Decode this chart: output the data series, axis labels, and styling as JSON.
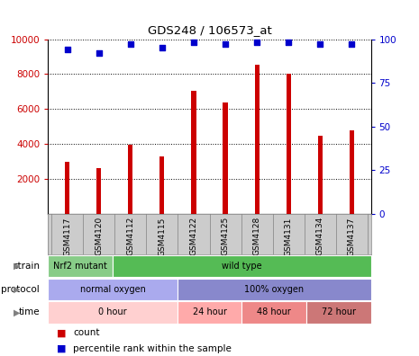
{
  "title": "GDS248 / 106573_at",
  "samples": [
    "GSM4117",
    "GSM4120",
    "GSM4112",
    "GSM4115",
    "GSM4122",
    "GSM4125",
    "GSM4128",
    "GSM4131",
    "GSM4134",
    "GSM4137"
  ],
  "counts": [
    2950,
    2600,
    3950,
    3280,
    7050,
    6350,
    8550,
    8000,
    4480,
    4750
  ],
  "percentiles": [
    94,
    92,
    97,
    95,
    98,
    97,
    98,
    98,
    97,
    97
  ],
  "bar_color": "#cc0000",
  "dot_color": "#0000cc",
  "ylim_left": [
    0,
    10000
  ],
  "ylim_right": [
    0,
    100
  ],
  "yticks_left": [
    2000,
    4000,
    6000,
    8000,
    10000
  ],
  "yticks_right": [
    0,
    25,
    50,
    75,
    100
  ],
  "strain_groups": [
    {
      "label": "Nrf2 mutant",
      "start": 0,
      "end": 2,
      "color": "#88cc88"
    },
    {
      "label": "wild type",
      "start": 2,
      "end": 10,
      "color": "#55bb55"
    }
  ],
  "protocol_groups": [
    {
      "label": "normal oxygen",
      "start": 0,
      "end": 4,
      "color": "#aaaaee"
    },
    {
      "label": "100% oxygen",
      "start": 4,
      "end": 10,
      "color": "#8888cc"
    }
  ],
  "time_groups": [
    {
      "label": "0 hour",
      "start": 0,
      "end": 4,
      "color": "#ffd0d0"
    },
    {
      "label": "24 hour",
      "start": 4,
      "end": 6,
      "color": "#ffaaaa"
    },
    {
      "label": "48 hour",
      "start": 6,
      "end": 8,
      "color": "#ee8888"
    },
    {
      "label": "72 hour",
      "start": 8,
      "end": 10,
      "color": "#cc7777"
    }
  ],
  "sample_bg_color": "#cccccc",
  "legend_count_label": "count",
  "legend_pct_label": "percentile rank within the sample",
  "background_color": "#ffffff",
  "grid_color": "#000000",
  "tick_label_color_left": "#cc0000",
  "tick_label_color_right": "#0000cc",
  "bar_width": 0.15
}
